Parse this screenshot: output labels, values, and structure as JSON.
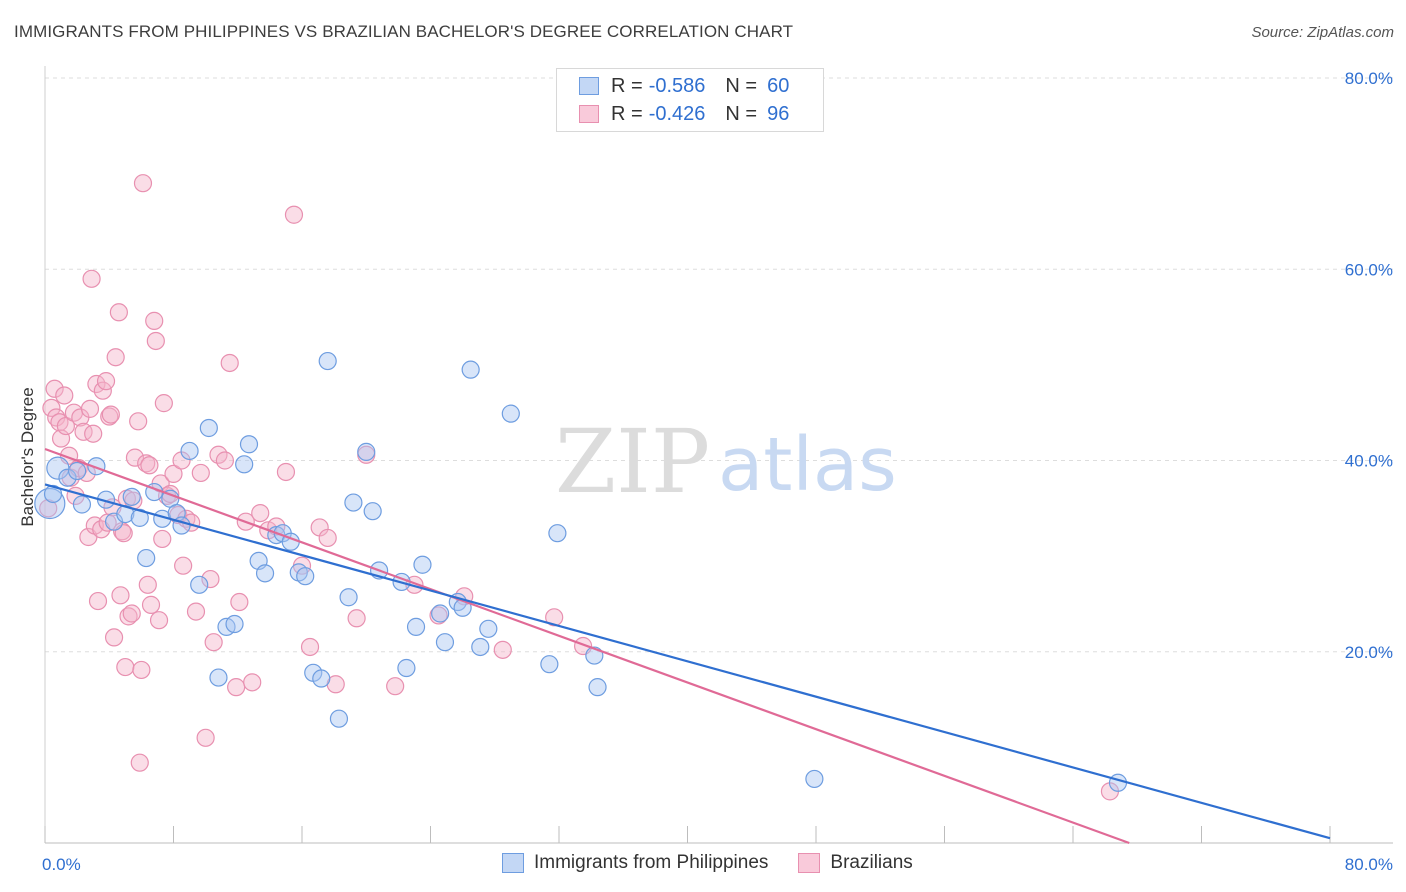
{
  "title": "IMMIGRANTS FROM PHILIPPINES VS BRAZILIAN BACHELOR'S DEGREE CORRELATION CHART",
  "source": "Source: ZipAtlas.com",
  "watermark": {
    "zip": "ZIP",
    "atlas": "atlas"
  },
  "colors": {
    "blue": "#2f6fd0",
    "blue_fill": "#a9c6f2",
    "blue_stroke": "#6e9de0",
    "pink": "#e06a96",
    "pink_fill": "#f5b3c9",
    "pink_stroke": "#e890b0",
    "grid": "#dddddd"
  },
  "legend": {
    "rows": [
      {
        "r_label": "R =",
        "r_value": "-0.586",
        "n_label": "N =",
        "n_value": "60"
      },
      {
        "r_label": "R =",
        "r_value": "-0.426",
        "n_label": "N =",
        "n_value": "96"
      }
    ]
  },
  "bottom_legend": {
    "series1": "Immigrants from Philippines",
    "series2": "Brazilians"
  },
  "chart_data": {
    "type": "scatter",
    "ylabel": "Bachelor's Degree",
    "xlim": [
      0,
      80
    ],
    "ylim": [
      0,
      80
    ],
    "x_tick_labels": [
      "0.0%",
      "80.0%"
    ],
    "y_tick_labels": [
      "20.0%",
      "40.0%",
      "60.0%",
      "80.0%"
    ],
    "y_ticks": [
      20,
      40,
      60,
      80
    ],
    "grid": true,
    "legend_position": "top-center",
    "series": [
      {
        "name": "Immigrants from Philippines",
        "color": "#2f6fd0",
        "trend": {
          "x": [
            0,
            80
          ],
          "y": [
            37.5,
            0.5
          ]
        },
        "points": [
          [
            0.3,
            35.5
          ],
          [
            0.8,
            39.2
          ],
          [
            1.4,
            38.2
          ],
          [
            2.0,
            38.9
          ],
          [
            2.3,
            35.4
          ],
          [
            3.2,
            39.4
          ],
          [
            3.8,
            35.9
          ],
          [
            4.3,
            33.6
          ],
          [
            5.0,
            34.4
          ],
          [
            5.4,
            36.2
          ],
          [
            5.9,
            34.0
          ],
          [
            6.3,
            29.8
          ],
          [
            6.8,
            36.7
          ],
          [
            7.3,
            33.9
          ],
          [
            7.8,
            36.0
          ],
          [
            8.2,
            34.5
          ],
          [
            8.5,
            33.2
          ],
          [
            9.0,
            41.0
          ],
          [
            9.6,
            27.0
          ],
          [
            10.2,
            43.4
          ],
          [
            10.8,
            17.3
          ],
          [
            11.3,
            22.6
          ],
          [
            11.8,
            22.9
          ],
          [
            12.4,
            39.6
          ],
          [
            12.7,
            41.7
          ],
          [
            13.3,
            29.5
          ],
          [
            13.7,
            28.2
          ],
          [
            14.4,
            32.2
          ],
          [
            14.8,
            32.4
          ],
          [
            15.3,
            31.5
          ],
          [
            15.8,
            28.3
          ],
          [
            16.2,
            27.9
          ],
          [
            16.7,
            17.8
          ],
          [
            17.2,
            17.2
          ],
          [
            17.6,
            50.4
          ],
          [
            18.3,
            13.0
          ],
          [
            18.9,
            25.7
          ],
          [
            19.2,
            35.6
          ],
          [
            20.0,
            40.9
          ],
          [
            20.4,
            34.7
          ],
          [
            20.8,
            28.5
          ],
          [
            22.2,
            27.3
          ],
          [
            22.5,
            18.3
          ],
          [
            23.1,
            22.6
          ],
          [
            23.5,
            29.1
          ],
          [
            24.6,
            24.0
          ],
          [
            24.9,
            21.0
          ],
          [
            25.7,
            25.2
          ],
          [
            26.0,
            24.6
          ],
          [
            26.5,
            49.5
          ],
          [
            27.1,
            20.5
          ],
          [
            27.6,
            22.4
          ],
          [
            29.0,
            44.9
          ],
          [
            31.4,
            18.7
          ],
          [
            31.9,
            32.4
          ],
          [
            34.2,
            19.6
          ],
          [
            34.4,
            16.3
          ],
          [
            47.9,
            6.7
          ],
          [
            66.8,
            6.3
          ],
          [
            0.5,
            36.5
          ]
        ]
      },
      {
        "name": "Brazilians",
        "color": "#e06a96",
        "trend": {
          "x": [
            0,
            67.5
          ],
          "y": [
            41.2,
            0
          ]
        },
        "points": [
          [
            0.2,
            35.0
          ],
          [
            0.4,
            45.5
          ],
          [
            0.6,
            47.5
          ],
          [
            0.7,
            44.5
          ],
          [
            0.9,
            44.0
          ],
          [
            1.0,
            42.3
          ],
          [
            1.2,
            46.8
          ],
          [
            1.3,
            43.6
          ],
          [
            1.5,
            40.5
          ],
          [
            1.6,
            38.2
          ],
          [
            1.8,
            45.0
          ],
          [
            1.9,
            36.3
          ],
          [
            2.1,
            39.2
          ],
          [
            2.2,
            44.5
          ],
          [
            2.4,
            43.0
          ],
          [
            2.6,
            38.7
          ],
          [
            2.7,
            32.0
          ],
          [
            2.8,
            45.4
          ],
          [
            2.9,
            59.0
          ],
          [
            3.0,
            42.8
          ],
          [
            3.1,
            33.2
          ],
          [
            3.2,
            48.0
          ],
          [
            3.3,
            25.3
          ],
          [
            3.5,
            32.8
          ],
          [
            3.6,
            47.3
          ],
          [
            3.8,
            48.3
          ],
          [
            3.9,
            33.5
          ],
          [
            4.0,
            44.6
          ],
          [
            4.1,
            44.8
          ],
          [
            4.2,
            35.1
          ],
          [
            4.3,
            21.5
          ],
          [
            4.4,
            50.8
          ],
          [
            4.6,
            55.5
          ],
          [
            4.7,
            25.9
          ],
          [
            4.8,
            32.6
          ],
          [
            4.9,
            32.4
          ],
          [
            5.0,
            18.4
          ],
          [
            5.1,
            36.0
          ],
          [
            5.2,
            23.7
          ],
          [
            5.4,
            24.0
          ],
          [
            5.5,
            35.8
          ],
          [
            5.6,
            40.3
          ],
          [
            5.8,
            44.1
          ],
          [
            5.9,
            8.4
          ],
          [
            6.0,
            18.1
          ],
          [
            6.1,
            69.0
          ],
          [
            6.3,
            39.7
          ],
          [
            6.4,
            27.0
          ],
          [
            6.5,
            39.5
          ],
          [
            6.6,
            24.9
          ],
          [
            6.8,
            54.6
          ],
          [
            6.9,
            52.5
          ],
          [
            7.1,
            23.3
          ],
          [
            7.2,
            37.6
          ],
          [
            7.3,
            31.8
          ],
          [
            7.4,
            46.0
          ],
          [
            7.6,
            36.3
          ],
          [
            7.8,
            36.5
          ],
          [
            8.0,
            38.6
          ],
          [
            8.3,
            34.3
          ],
          [
            8.6,
            29.0
          ],
          [
            8.8,
            33.9
          ],
          [
            9.1,
            33.5
          ],
          [
            9.4,
            24.2
          ],
          [
            9.7,
            38.7
          ],
          [
            10.0,
            11.0
          ],
          [
            10.3,
            27.6
          ],
          [
            10.5,
            21.0
          ],
          [
            10.8,
            40.6
          ],
          [
            11.2,
            40.0
          ],
          [
            11.5,
            50.2
          ],
          [
            11.9,
            16.3
          ],
          [
            12.1,
            25.2
          ],
          [
            12.5,
            33.6
          ],
          [
            12.9,
            16.8
          ],
          [
            13.4,
            34.5
          ],
          [
            13.9,
            32.7
          ],
          [
            14.4,
            33.1
          ],
          [
            15.0,
            38.8
          ],
          [
            15.5,
            65.7
          ],
          [
            16.0,
            29.0
          ],
          [
            16.5,
            20.5
          ],
          [
            17.1,
            33.0
          ],
          [
            17.6,
            31.9
          ],
          [
            18.1,
            16.6
          ],
          [
            19.4,
            23.5
          ],
          [
            20.0,
            40.6
          ],
          [
            21.8,
            16.4
          ],
          [
            23.0,
            27.0
          ],
          [
            24.5,
            23.8
          ],
          [
            26.1,
            25.8
          ],
          [
            28.5,
            20.2
          ],
          [
            31.7,
            23.6
          ],
          [
            33.5,
            20.6
          ],
          [
            66.3,
            5.4
          ],
          [
            8.5,
            40.0
          ]
        ]
      }
    ]
  }
}
